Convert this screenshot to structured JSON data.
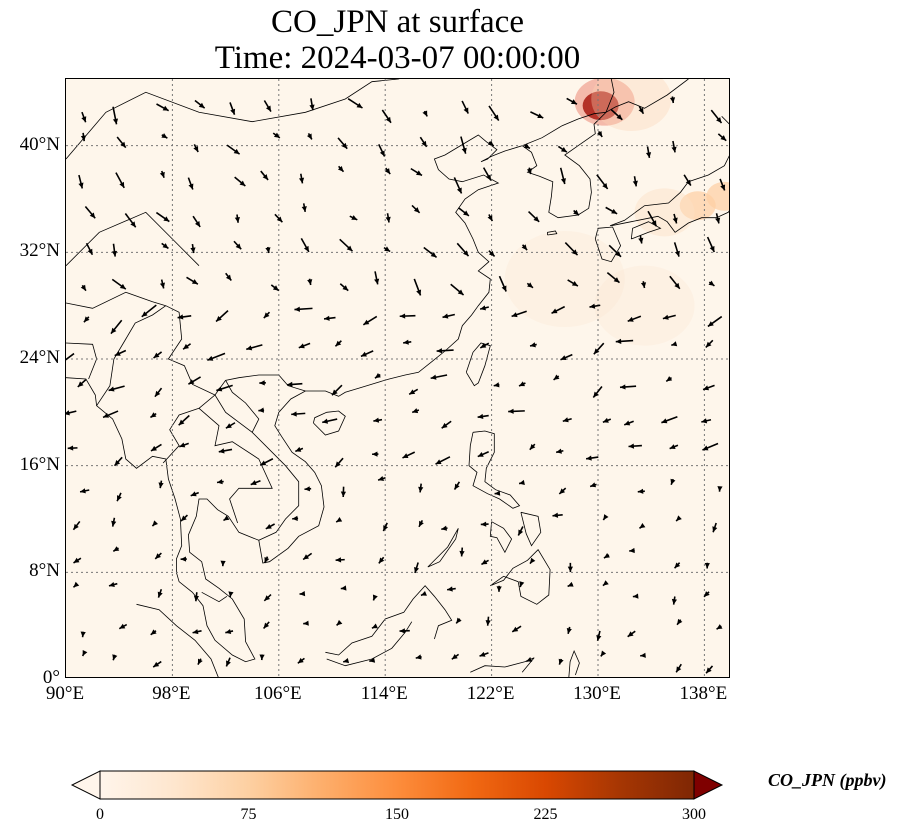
{
  "title": {
    "line1": "CO_JPN at surface",
    "line2": "Time: 2024-03-07 00:00:00"
  },
  "map": {
    "lat_range": [
      0,
      45
    ],
    "lon_range": [
      90,
      140
    ],
    "lat_ticks": [
      "40°N",
      "32°N",
      "24°N",
      "16°N",
      "8°N",
      "0°"
    ],
    "lon_ticks": [
      "90°E",
      "98°E",
      "106°E",
      "114°E",
      "122°E",
      "130°E",
      "138°E"
    ],
    "gridlines": true,
    "background_color": "#fef6eb",
    "coastline_color": "#000000",
    "plume_color": "#8b0000"
  },
  "colorbar": {
    "label": "CO_JPN (ppbv)",
    "min": 0,
    "max": 300,
    "ticks": [
      "0",
      "75",
      "150",
      "225",
      "300"
    ],
    "colormap": [
      "#fff5eb",
      "#fee6ce",
      "#fdd0a2",
      "#fdae6b",
      "#fd8d3c",
      "#f16913",
      "#d94801",
      "#a63603",
      "#7f2704"
    ],
    "extend": "both"
  },
  "wind_vectors": {
    "color": "#000000",
    "description_field": "wind arrows"
  }
}
